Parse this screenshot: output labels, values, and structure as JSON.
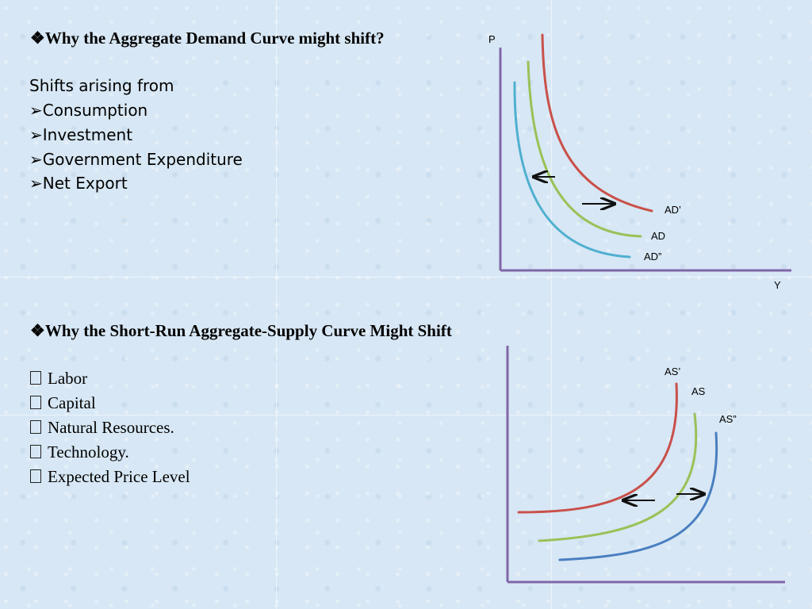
{
  "top_section": {
    "title": "Why the Aggregate Demand Curve might shift?",
    "intro": "Shifts arising from",
    "items": [
      "Consumption",
      "Investment",
      "Government Expenditure",
      "Net Export"
    ]
  },
  "bottom_section": {
    "title": "Why the Short-Run Aggregate-Supply Curve Might Shift",
    "items": [
      "Labor",
      "Capital",
      "Natural Resources.",
      "Technology.",
      "Expected Price Level"
    ]
  },
  "ad_diagram": {
    "axis_y_label": "P",
    "axis_x_label": "Y",
    "curves": [
      {
        "label": "AD’",
        "color": "#c9504a"
      },
      {
        "label": "AD",
        "color": "#9ac158"
      },
      {
        "label": "AD”",
        "color": "#4fb0cf"
      }
    ]
  },
  "as_diagram": {
    "curves": [
      {
        "label": "AS’",
        "color": "#c9504a"
      },
      {
        "label": "AS",
        "color": "#9ac158"
      },
      {
        "label": "AS”",
        "color": "#4a7fc1"
      }
    ]
  },
  "bullets": {
    "diamond": "❖",
    "arrow": "➢"
  }
}
